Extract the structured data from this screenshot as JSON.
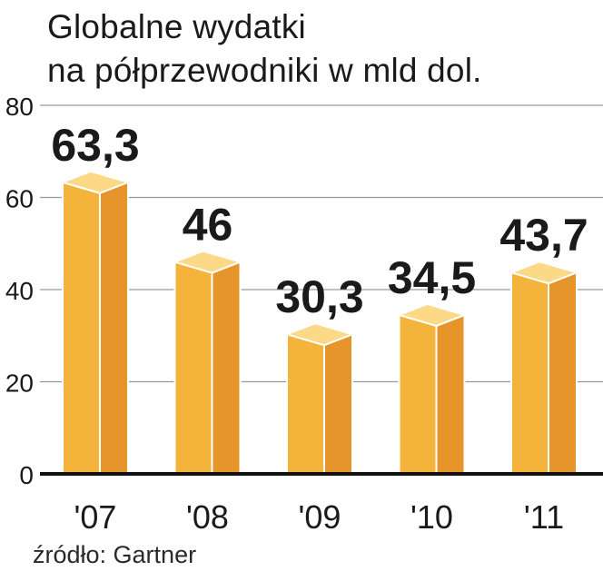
{
  "chart_data": {
    "type": "bar",
    "title_lines": [
      "Globalne wydatki",
      "na półprzewodniki w mld dol."
    ],
    "categories": [
      "'07",
      "'08",
      "'09",
      "'10",
      "'11"
    ],
    "values": [
      63.3,
      46,
      30.3,
      34.5,
      43.7
    ],
    "value_labels": [
      "63,3",
      "46",
      "30,3",
      "34,5",
      "43,7"
    ],
    "ylim": [
      0,
      80
    ],
    "yticks": [
      0,
      20,
      40,
      60,
      80
    ],
    "grid": true,
    "source": "źródło: Gartner",
    "colors": {
      "bar_front": "#f4b43c",
      "bar_side": "#e6952a",
      "bar_top": "#fbd987",
      "bar_outline": "#ffffff",
      "grid": "#9a9a9a",
      "axis": "#111111",
      "text": "#1a1a1a"
    }
  }
}
